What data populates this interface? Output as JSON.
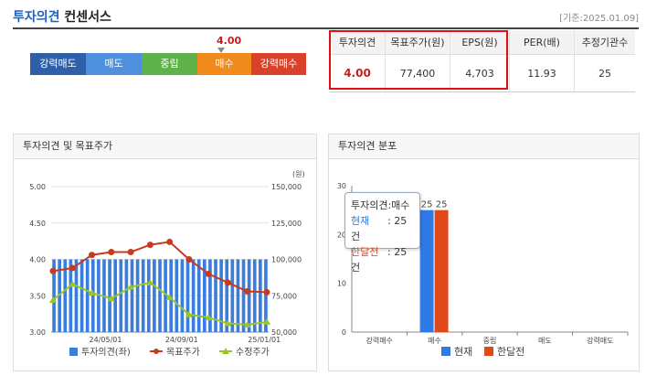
{
  "header": {
    "title_a": "투자의견",
    "title_b": "컨센서스",
    "base_date": "[기준:2025.01.09]"
  },
  "scale": {
    "current_value": "4.00",
    "segments": [
      {
        "label": "강력매도",
        "color": "#2f5fa8"
      },
      {
        "label": "매도",
        "color": "#4e8fde"
      },
      {
        "label": "중립",
        "color": "#5fb24a"
      },
      {
        "label": "매수",
        "color": "#f08a1c"
      },
      {
        "label": "강력매수",
        "color": "#d9412a"
      }
    ]
  },
  "consensus": {
    "headers": [
      "투자의견",
      "목표주가(원)",
      "EPS(원)",
      "PER(배)",
      "추정기관수"
    ],
    "values": [
      "4.00",
      "77,400",
      "4,703",
      "11.93",
      "25"
    ]
  },
  "left_panel": {
    "title": "투자의견 및 목표주가"
  },
  "right_panel": {
    "title": "투자의견 분포"
  },
  "tooltip": {
    "title": "투자의견:매수",
    "line1_label": "현재",
    "line1_value": ": 25 건",
    "line2_label": "한달전",
    "line2_value": ": 25 건"
  },
  "chart_data": [
    {
      "type": "bar+line",
      "title": "",
      "left_axis": {
        "ylim": [
          3.0,
          5.0
        ],
        "ticks": [
          "5.00",
          "4.50",
          "4.00",
          "3.50",
          "3.00"
        ]
      },
      "right_axis": {
        "unit": "(원)",
        "ylim": [
          50000,
          150000
        ],
        "ticks": [
          "150,000",
          "125,000",
          "100,000",
          "75,000",
          "50,000"
        ]
      },
      "x_ticks": [
        "24/05/01",
        "24/09/01",
        "25/01/01"
      ],
      "series": [
        {
          "name": "투자의견(좌)",
          "type": "bar",
          "color": "#3a7ddc",
          "values": [
            4,
            4,
            4,
            4,
            4,
            4,
            4,
            4,
            4,
            4,
            4,
            4,
            4,
            4,
            4,
            4,
            4,
            4,
            4,
            4,
            4,
            4,
            4,
            4,
            4,
            4,
            4,
            4,
            4,
            4,
            4,
            4,
            4,
            4,
            4,
            4,
            4,
            4,
            4
          ]
        },
        {
          "name": "목표주가",
          "type": "line",
          "color": "#c8391e",
          "values": [
            92000,
            94000,
            103000,
            105000,
            105000,
            110000,
            112000,
            100000,
            90000,
            84000,
            78000,
            77400
          ]
        },
        {
          "name": "수정주가",
          "type": "line",
          "color": "#9ac42a",
          "values": [
            72000,
            83000,
            77000,
            73000,
            81000,
            84000,
            74000,
            62000,
            60000,
            56000,
            55000,
            57000
          ]
        }
      ]
    },
    {
      "type": "bar",
      "title": "",
      "categories": [
        "강력매수",
        "매수",
        "중립",
        "매도",
        "강력매도"
      ],
      "ylim": [
        0,
        30
      ],
      "y_ticks": [
        "30",
        "20",
        "10",
        "0"
      ],
      "series": [
        {
          "name": "현재",
          "color": "#2f7ae5",
          "values": [
            0,
            25,
            0,
            0,
            0
          ]
        },
        {
          "name": "한달전",
          "color": "#e04a1b",
          "values": [
            0,
            25,
            0,
            0,
            0
          ]
        }
      ]
    }
  ]
}
